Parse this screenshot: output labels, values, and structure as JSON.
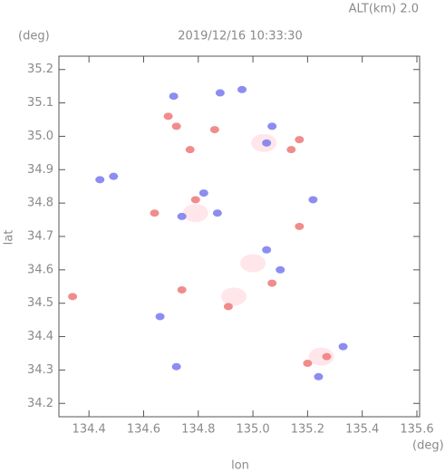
{
  "chart_data": {
    "type": "scatter",
    "title": "2019/12/16 10:33:30",
    "annotation": "ALT(km) 2.0",
    "y_unit": "(deg)",
    "x_unit": "(deg)",
    "xlabel": "lon",
    "ylabel": "lat",
    "xlim": [
      134.29,
      135.61
    ],
    "ylim": [
      34.16,
      35.24
    ],
    "xticks": [
      134.4,
      134.6,
      134.8,
      {
        "value": 135,
        "label": "135.0"
      },
      135.2,
      135.4,
      135.6
    ],
    "yticks": [
      34.2,
      34.3,
      34.4,
      34.5,
      34.6,
      34.7,
      34.8,
      34.9,
      {
        "value": 35,
        "label": "35.0"
      },
      35.1,
      35.2
    ],
    "series": [
      {
        "color": "#ffe6ea",
        "x": [
          134.79,
          134.93,
          135.25,
          135.0,
          135.04
        ],
        "y": [
          34.77,
          34.52,
          34.34,
          34.62,
          34.98
        ]
      },
      {
        "color": "#7f7ff0",
        "x": [
          134.88,
          134.71,
          134.96,
          134.44,
          134.49,
          135.22,
          135.05,
          135.33,
          135.24,
          135.07,
          134.87,
          134.74,
          135.05,
          134.72,
          134.82,
          134.66,
          135.1
        ],
        "y": [
          35.13,
          35.12,
          35.14,
          34.87,
          34.88,
          34.81,
          34.66,
          34.37,
          34.28,
          35.03,
          34.77,
          34.76,
          34.98,
          34.31,
          34.83,
          34.46,
          34.6
        ]
      },
      {
        "color": "#f07f7f",
        "x": [
          134.69,
          134.72,
          134.86,
          135.17,
          134.64,
          134.79,
          134.91,
          135.2,
          135.27,
          134.74,
          135.07,
          135.14,
          135.17,
          134.77,
          134.34
        ],
        "y": [
          35.06,
          35.03,
          35.02,
          34.99,
          34.77,
          34.81,
          34.49,
          34.32,
          34.34,
          34.54,
          34.56,
          34.96,
          34.73,
          34.96,
          34.52
        ]
      }
    ]
  }
}
